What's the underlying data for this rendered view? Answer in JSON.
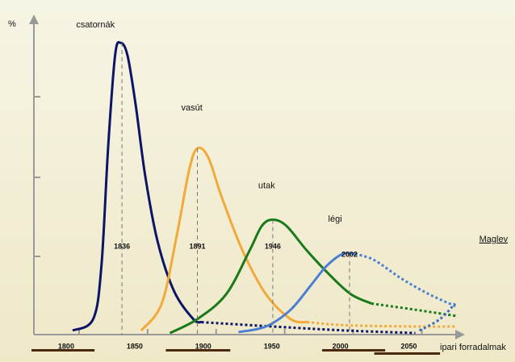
{
  "chart_data": {
    "type": "line",
    "y_label": "%",
    "x_label": "ipari forradalmak",
    "xlim": [
      1770,
      2085
    ],
    "ylim": [
      0,
      100
    ],
    "xticks": [
      1800,
      1850,
      1900,
      1950,
      2000,
      2050
    ],
    "peak_years": [
      1836,
      1891,
      1946,
      2002
    ],
    "revolutions": [
      [
        1770,
        1816
      ],
      [
        1868,
        1915
      ],
      [
        1982,
        2028
      ],
      [
        2020,
        2068
      ]
    ],
    "revolution_color": "#4a2a0a",
    "series": [
      {
        "name": "csatornák",
        "color": "#0c1466",
        "x": [
          1800,
          1815,
          1821,
          1826,
          1831,
          1835,
          1840,
          1846,
          1853,
          1862,
          1874,
          1888,
          1894
        ],
        "values": [
          1.3,
          5,
          22,
          61,
          90,
          94,
          90,
          74,
          51,
          30,
          14,
          5,
          4
        ],
        "projection": {
          "x": [
            1894,
            1950,
            2000,
            2050
          ],
          "values": [
            4,
            2.5,
            1.3,
            0.5
          ]
        }
      },
      {
        "name": "vasút",
        "color": "#f2a93b",
        "x": [
          1850,
          1865,
          1876,
          1885,
          1891,
          1899,
          1909,
          1924,
          1941,
          1959,
          1971
        ],
        "values": [
          1.3,
          10,
          32,
          53,
          60,
          57,
          44,
          27,
          13,
          5,
          4
        ],
        "projection": {
          "x": [
            1971,
            2000,
            2050,
            2080
          ],
          "values": [
            4,
            3,
            2.6,
            2.6
          ]
        }
      },
      {
        "name": "utak",
        "color": "#1a7a1a",
        "x": [
          1871,
          1891,
          1912,
          1929,
          1938,
          1946,
          1956,
          1971,
          1988,
          2003,
          2018
        ],
        "values": [
          0.5,
          5,
          13,
          27,
          35,
          37,
          35,
          27,
          19,
          13,
          10
        ],
        "projection": {
          "x": [
            2018,
            2050,
            2080
          ],
          "values": [
            10,
            8,
            6
          ]
        }
      },
      {
        "name": "légi",
        "color": "#4a7fd4",
        "x": [
          1921,
          1941,
          1959,
          1974,
          1985,
          1997,
          2006
        ],
        "values": [
          0.8,
          2.6,
          8,
          16,
          22,
          26,
          26
        ],
        "projection": {
          "x": [
            2006,
            2020,
            2040,
            2060,
            2080
          ],
          "values": [
            26,
            24,
            18,
            13,
            9
          ]
        }
      },
      {
        "name": "Maglev",
        "color": "#3c6cc8",
        "projection": {
          "x": [
            2053,
            2068,
            2079
          ],
          "values": [
            1.3,
            5,
            10
          ]
        }
      }
    ]
  }
}
